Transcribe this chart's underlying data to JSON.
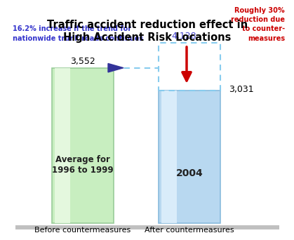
{
  "title_line1": "Traffic accident reduction effect in",
  "title_line2": "High Accident Risk Locations",
  "bar1_value": 3552,
  "bar2_value": 3031,
  "projected_value": 4128,
  "bar1_label": "Average for\n1996 to 1999",
  "bar2_label": "2004",
  "bar1_color": "#c8eec0",
  "bar1_highlight": "#eafae4",
  "bar1_edge": "#99cc99",
  "bar2_color": "#b8d8f0",
  "bar2_highlight": "#dff0fc",
  "bar2_edge": "#88bbdd",
  "xlabel1": "Before countermeasures",
  "xlabel2": "After countermeasures",
  "annotation_left_line1": "16.2% increase if the trend for",
  "annotation_left_line2": "nationwide trunk roads continues",
  "annotation_right": "Roughly 30%\nreduction due\nto counter-\nmeasures",
  "annotation_left_color": "#3333cc",
  "annotation_right_color": "#cc0000",
  "projected_label": "4,128",
  "bar1_num_label": "3,552",
  "bar2_num_label": "3,031",
  "dashed_color": "#88ccee",
  "arrow_color": "#cc0000",
  "triangle_color": "#333399",
  "floor_color": "#c0c0c0",
  "background_color": "#ffffff"
}
